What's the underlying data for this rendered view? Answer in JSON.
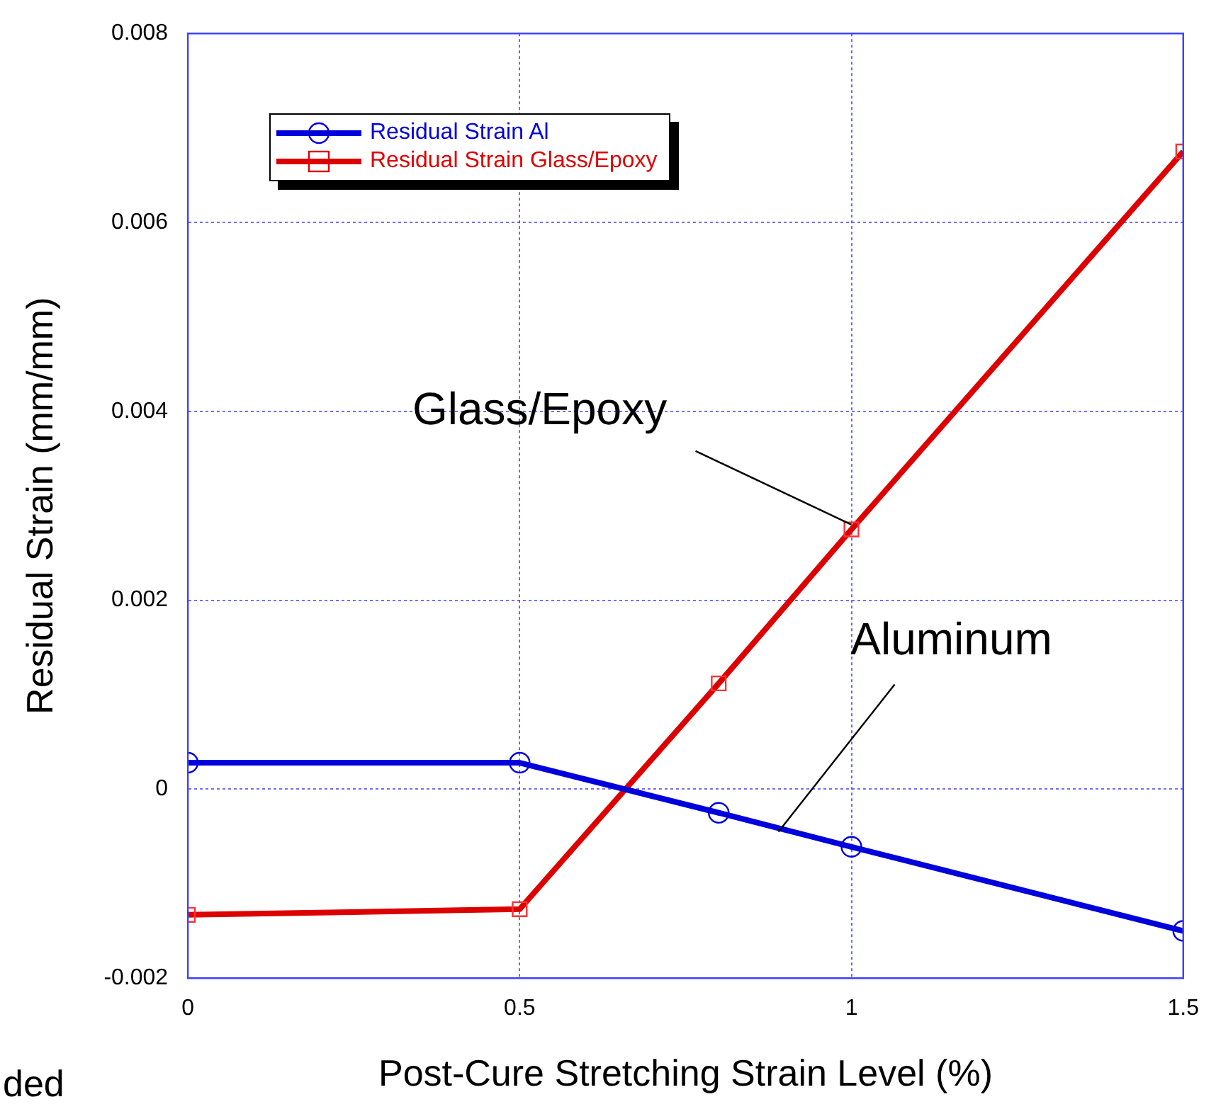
{
  "chart_data": {
    "type": "line",
    "xlabel": "Post-Cure Stretching Strain Level (%)",
    "ylabel": "Residual Strain (mm/mm)",
    "xlim": [
      0,
      1.5
    ],
    "xticks": [
      0,
      0.5,
      1,
      1.5
    ],
    "ylim": [
      -0.002,
      0.008
    ],
    "yticks": [
      -0.002,
      0,
      0.002,
      0.004,
      0.006,
      0.008
    ],
    "grid": true,
    "legend": "top left",
    "series": [
      {
        "name": "Residual Strain Al",
        "color": "#0000dd",
        "marker": "circle",
        "x": [
          0,
          0.5,
          0.8,
          1,
          1.5
        ],
        "values": [
          0.00028,
          0.00028,
          -0.00025,
          -0.00061,
          -0.0015
        ]
      },
      {
        "name": "Residual Strain Glass/Epoxy",
        "color": "#dd0000",
        "marker": "square",
        "x": [
          0,
          0.5,
          0.8,
          1,
          1.5
        ],
        "values": [
          -0.00133,
          -0.00127,
          0.00112,
          0.00275,
          0.00675
        ]
      }
    ],
    "annotations": [
      {
        "text": "Glass/Epoxy",
        "x": 1,
        "y": 0.0028
      },
      {
        "text": "Aluminum",
        "x": 0.89,
        "y": -0.00045
      },
      "ded"
    ]
  }
}
